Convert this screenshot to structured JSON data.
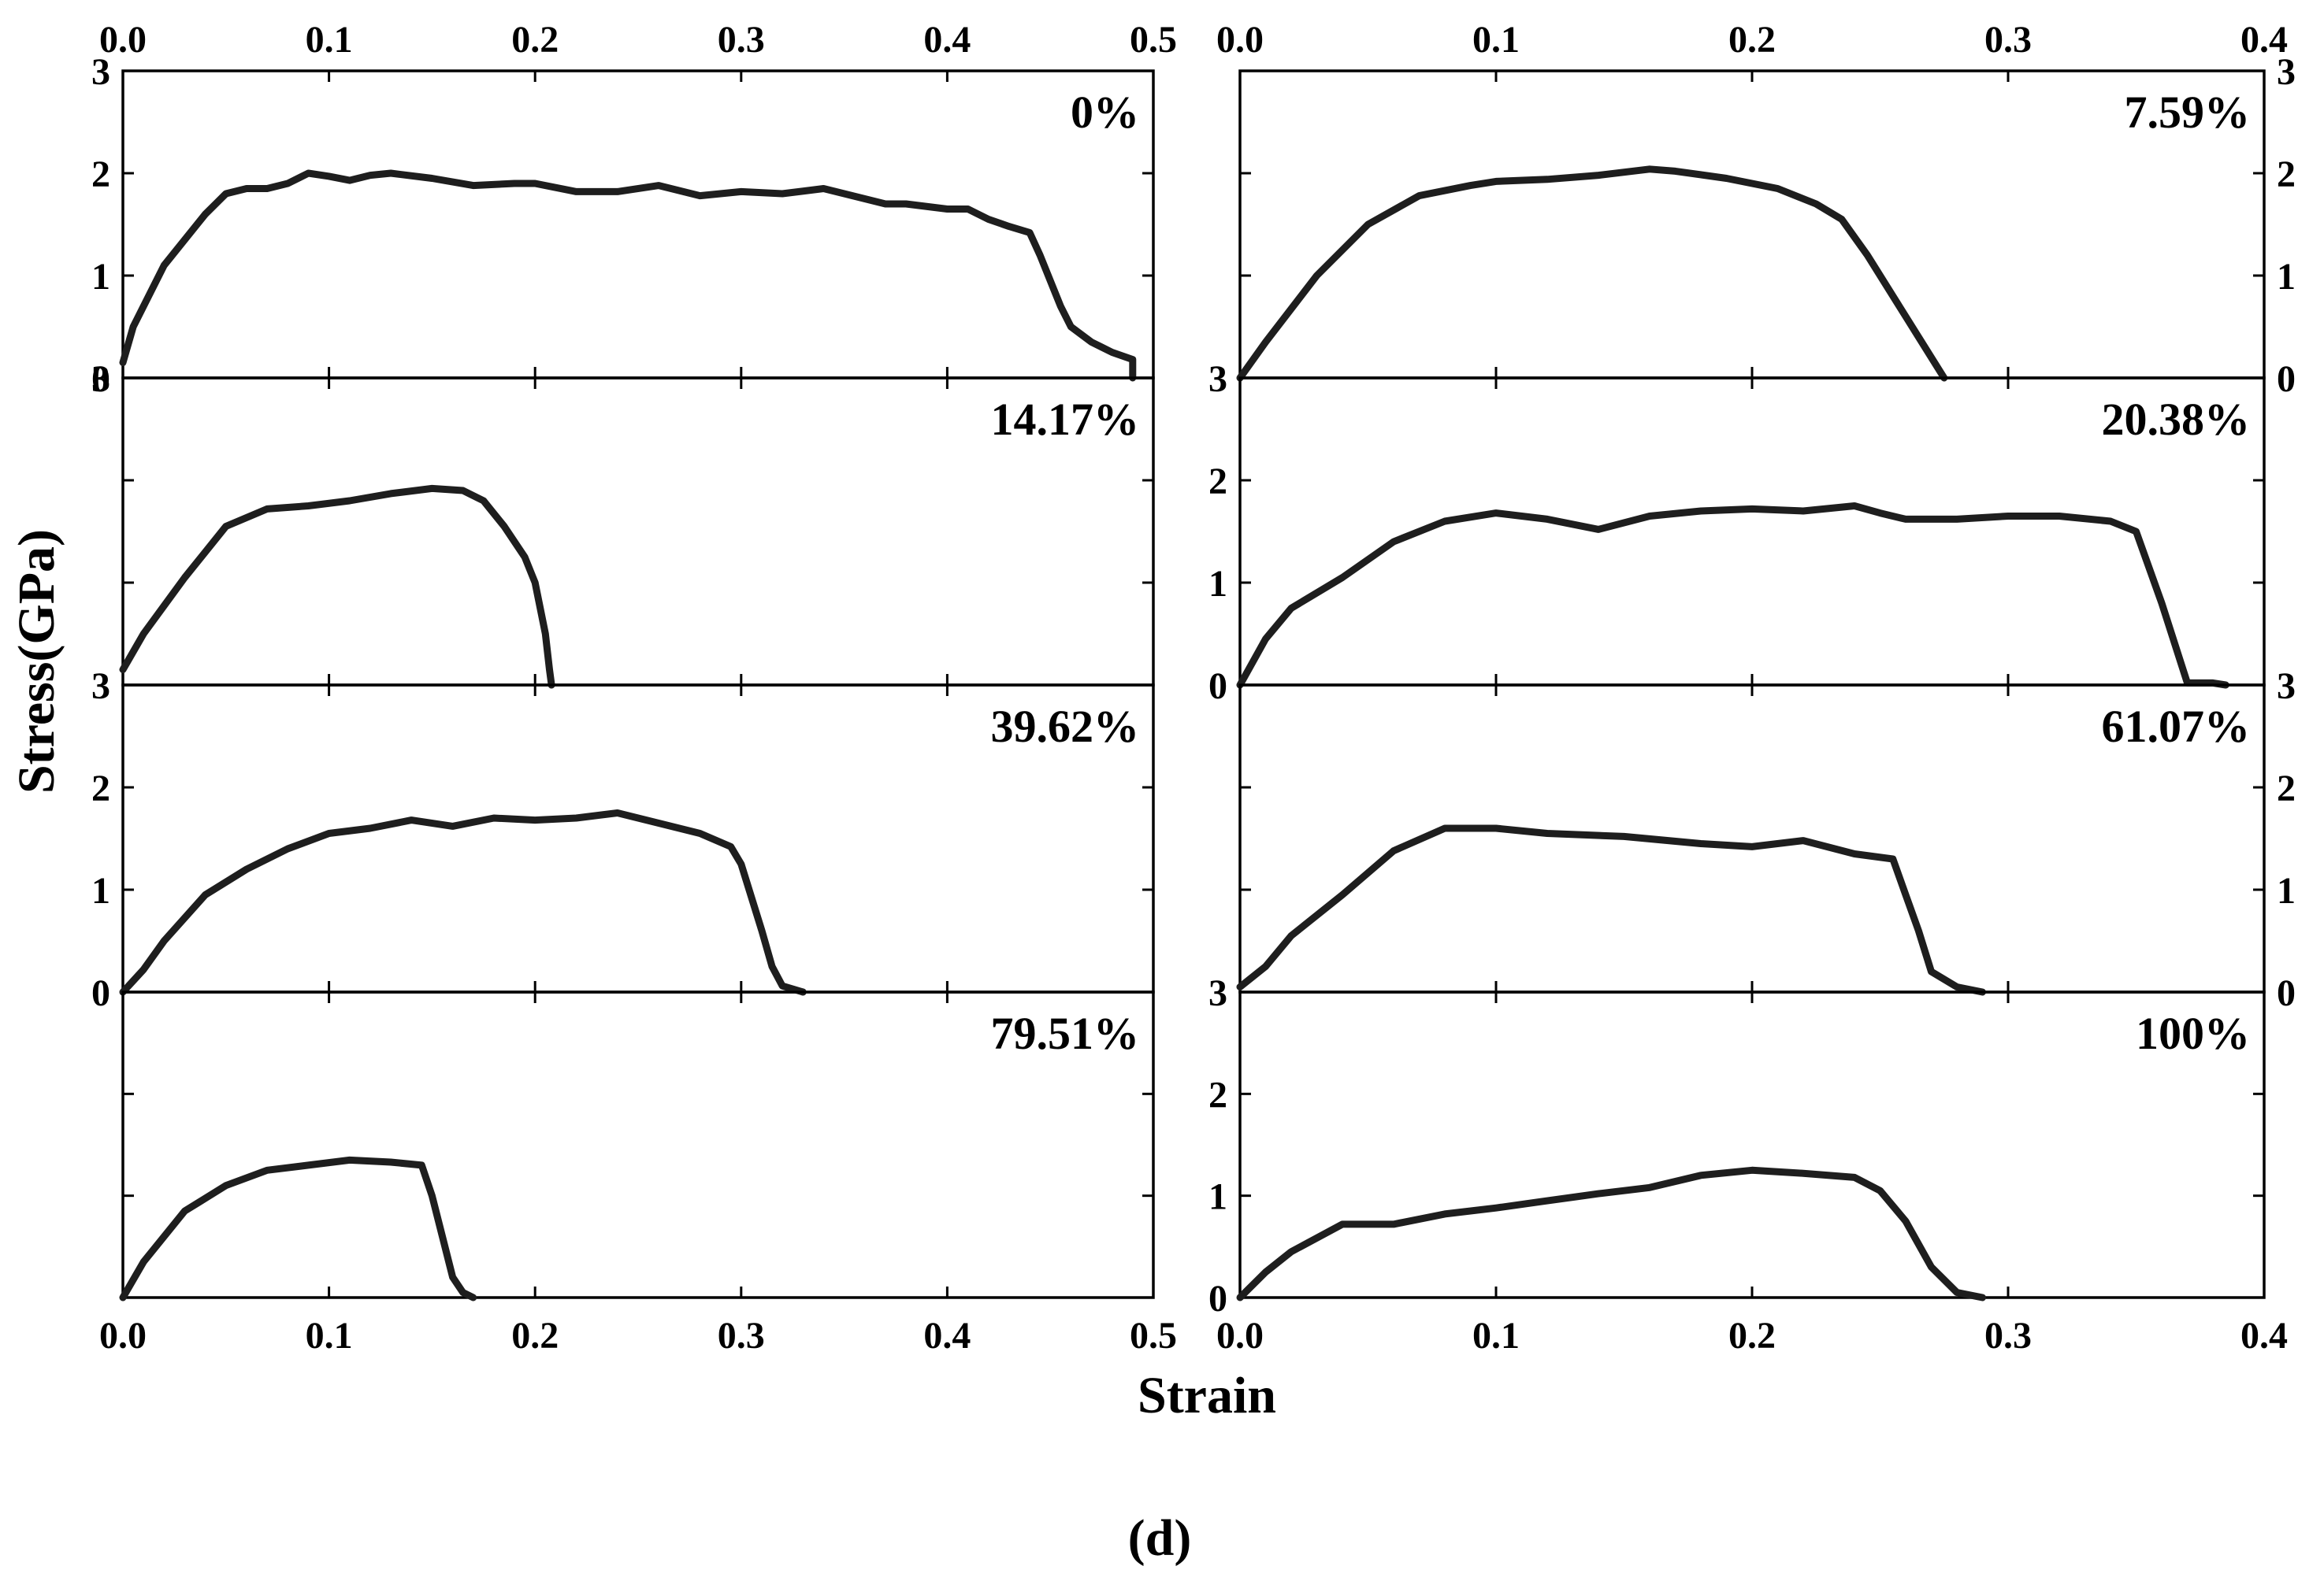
{
  "figure_label": "(d)",
  "chart_data": {
    "type": "line",
    "xlabel": "Strain",
    "ylabel": "Stress(GPa)",
    "columns": [
      {
        "xlim": [
          0,
          0.5
        ],
        "xticks": [
          0,
          0.1,
          0.2,
          0.3,
          0.4,
          0.5
        ],
        "xtick_labels": [
          "0.0",
          "0.1",
          "0.2",
          "0.3",
          "0.4",
          "0.5"
        ]
      },
      {
        "xlim": [
          0,
          0.4
        ],
        "xticks": [
          0,
          0.1,
          0.2,
          0.3,
          0.4
        ],
        "xtick_labels": [
          "0.0",
          "0.1",
          "0.2",
          "0.3",
          "0.4"
        ]
      }
    ],
    "ylim": [
      0,
      3
    ],
    "yticks": [
      0,
      1,
      2,
      3
    ],
    "panels": [
      {
        "label": "0%",
        "col": 0,
        "row": 0,
        "yaxis_side": "left",
        "ytick_labels": [
          "0",
          "1",
          "2",
          "3"
        ],
        "x": [
          0,
          0.005,
          0.02,
          0.04,
          0.05,
          0.06,
          0.07,
          0.08,
          0.09,
          0.1,
          0.11,
          0.12,
          0.13,
          0.15,
          0.17,
          0.19,
          0.2,
          0.22,
          0.24,
          0.26,
          0.28,
          0.3,
          0.32,
          0.34,
          0.35,
          0.37,
          0.38,
          0.4,
          0.41,
          0.42,
          0.43,
          0.44,
          0.445,
          0.455,
          0.46,
          0.47,
          0.48,
          0.49,
          0.49
        ],
        "y": [
          0.15,
          0.5,
          1.1,
          1.6,
          1.8,
          1.85,
          1.85,
          1.9,
          2.0,
          1.97,
          1.93,
          1.98,
          2.0,
          1.95,
          1.88,
          1.9,
          1.9,
          1.82,
          1.82,
          1.88,
          1.78,
          1.82,
          1.8,
          1.85,
          1.8,
          1.7,
          1.7,
          1.65,
          1.65,
          1.55,
          1.48,
          1.42,
          1.2,
          0.7,
          0.5,
          0.35,
          0.25,
          0.18,
          0
        ]
      },
      {
        "label": "7.59%",
        "col": 1,
        "row": 0,
        "yaxis_side": "right",
        "ytick_labels": [
          "0",
          "1",
          "2",
          "3"
        ],
        "x": [
          0,
          0.01,
          0.03,
          0.05,
          0.07,
          0.09,
          0.1,
          0.12,
          0.14,
          0.16,
          0.17,
          0.19,
          0.21,
          0.225,
          0.235,
          0.245,
          0.255,
          0.265,
          0.275
        ],
        "y": [
          0,
          0.35,
          1.0,
          1.5,
          1.78,
          1.88,
          1.92,
          1.94,
          1.98,
          2.04,
          2.02,
          1.95,
          1.85,
          1.7,
          1.55,
          1.2,
          0.8,
          0.4,
          0
        ]
      },
      {
        "label": "14.17%",
        "col": 0,
        "row": 1,
        "yaxis_side": "left",
        "ytick_labels": [
          "",
          "",
          "",
          "3"
        ],
        "x": [
          0,
          0.01,
          0.03,
          0.05,
          0.07,
          0.09,
          0.11,
          0.13,
          0.15,
          0.165,
          0.175,
          0.185,
          0.195,
          0.2,
          0.205,
          0.207,
          0.208
        ],
        "y": [
          0.15,
          0.5,
          1.05,
          1.55,
          1.72,
          1.75,
          1.8,
          1.87,
          1.92,
          1.9,
          1.8,
          1.55,
          1.25,
          1.0,
          0.5,
          0.15,
          0
        ]
      },
      {
        "label": "20.38%",
        "col": 1,
        "row": 1,
        "yaxis_side": "left",
        "ytick_labels": [
          "0",
          "1",
          "2",
          "3"
        ],
        "x": [
          0,
          0.01,
          0.02,
          0.04,
          0.06,
          0.08,
          0.1,
          0.12,
          0.14,
          0.16,
          0.18,
          0.2,
          0.22,
          0.24,
          0.25,
          0.26,
          0.28,
          0.3,
          0.32,
          0.34,
          0.35,
          0.36,
          0.37,
          0.38,
          0.385
        ],
        "y": [
          0,
          0.45,
          0.75,
          1.05,
          1.4,
          1.6,
          1.68,
          1.62,
          1.52,
          1.65,
          1.7,
          1.72,
          1.7,
          1.75,
          1.68,
          1.62,
          1.62,
          1.65,
          1.65,
          1.6,
          1.5,
          0.8,
          0.02,
          0.02,
          0
        ]
      },
      {
        "label": "39.62%",
        "col": 0,
        "row": 2,
        "yaxis_side": "left",
        "ytick_labels": [
          "0",
          "1",
          "2",
          "3"
        ],
        "x": [
          0,
          0.01,
          0.02,
          0.04,
          0.06,
          0.08,
          0.1,
          0.12,
          0.14,
          0.16,
          0.18,
          0.2,
          0.22,
          0.24,
          0.26,
          0.28,
          0.295,
          0.3,
          0.31,
          0.315,
          0.32,
          0.33
        ],
        "y": [
          0,
          0.22,
          0.5,
          0.95,
          1.2,
          1.4,
          1.55,
          1.6,
          1.68,
          1.62,
          1.7,
          1.68,
          1.7,
          1.75,
          1.65,
          1.55,
          1.42,
          1.25,
          0.6,
          0.25,
          0.06,
          0
        ]
      },
      {
        "label": "61.07%",
        "col": 1,
        "row": 2,
        "yaxis_side": "right",
        "ytick_labels": [
          "0",
          "1",
          "2",
          "3"
        ],
        "x": [
          0,
          0.01,
          0.02,
          0.04,
          0.06,
          0.08,
          0.1,
          0.12,
          0.15,
          0.18,
          0.2,
          0.22,
          0.24,
          0.255,
          0.26,
          0.265,
          0.27,
          0.28,
          0.29
        ],
        "y": [
          0.05,
          0.25,
          0.55,
          0.95,
          1.38,
          1.6,
          1.6,
          1.55,
          1.52,
          1.45,
          1.42,
          1.48,
          1.35,
          1.3,
          0.95,
          0.6,
          0.2,
          0.05,
          0
        ]
      },
      {
        "label": "79.51%",
        "col": 0,
        "row": 3,
        "yaxis_side": "left",
        "ytick_labels": [
          "",
          "",
          "",
          ""
        ],
        "x": [
          0,
          0.01,
          0.03,
          0.05,
          0.07,
          0.09,
          0.11,
          0.13,
          0.145,
          0.15,
          0.155,
          0.16,
          0.165,
          0.17
        ],
        "y": [
          0,
          0.35,
          0.85,
          1.1,
          1.25,
          1.3,
          1.35,
          1.33,
          1.3,
          1.0,
          0.6,
          0.2,
          0.05,
          0
        ]
      },
      {
        "label": "100%",
        "col": 1,
        "row": 3,
        "yaxis_side": "left",
        "ytick_labels": [
          "0",
          "1",
          "2",
          "3"
        ],
        "x": [
          0,
          0.01,
          0.02,
          0.04,
          0.06,
          0.08,
          0.1,
          0.12,
          0.14,
          0.16,
          0.18,
          0.2,
          0.22,
          0.24,
          0.25,
          0.26,
          0.27,
          0.28,
          0.29
        ],
        "y": [
          0,
          0.25,
          0.45,
          0.72,
          0.72,
          0.82,
          0.88,
          0.95,
          1.02,
          1.08,
          1.2,
          1.25,
          1.22,
          1.18,
          1.05,
          0.75,
          0.3,
          0.05,
          0
        ]
      }
    ]
  }
}
